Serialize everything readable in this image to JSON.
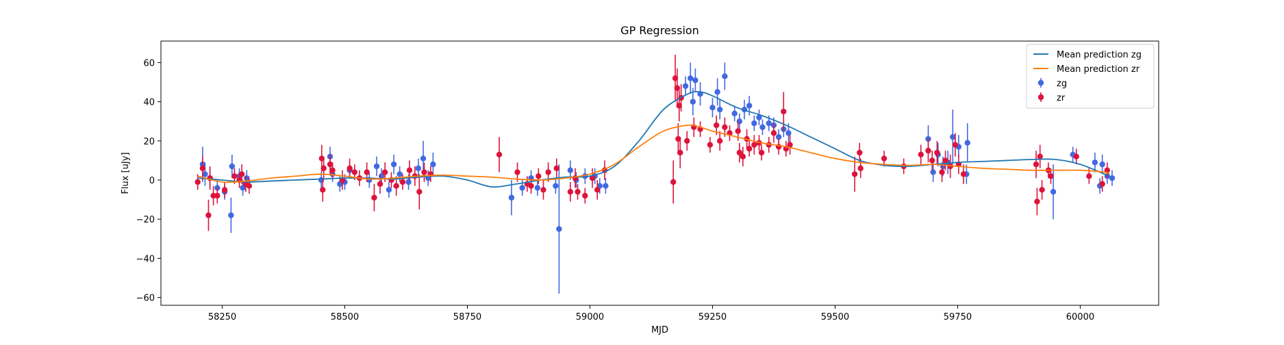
{
  "chart_data": {
    "type": "scatter",
    "title": "GP Regression",
    "xlabel": "MJD",
    "ylabel": "Flux [uJy]",
    "xlim": [
      58125,
      60160
    ],
    "ylim": [
      -64,
      71
    ],
    "xticks": [
      58250,
      58500,
      58750,
      59000,
      59250,
      59500,
      59750,
      60000
    ],
    "yticks": [
      -60,
      -40,
      -20,
      0,
      20,
      40,
      60
    ],
    "grid": false,
    "legend_position": "top-right",
    "legend": [
      "Mean prediction zg",
      "Mean prediction zr",
      "zg",
      "zr"
    ],
    "series": [
      {
        "name": "Mean prediction zg",
        "kind": "line",
        "color": "#1f77b4",
        "x": [
          58200,
          58250,
          58300,
          58350,
          58400,
          58450,
          58500,
          58550,
          58600,
          58650,
          58700,
          58750,
          58800,
          58850,
          58900,
          58950,
          59000,
          59050,
          59100,
          59150,
          59200,
          59225,
          59250,
          59300,
          59350,
          59400,
          59450,
          59500,
          59550,
          59600,
          59650,
          59700,
          59750,
          59800,
          59850,
          59900,
          59950,
          60000,
          60050,
          60060
        ],
        "y": [
          1,
          0,
          -1,
          -0.5,
          0,
          0.5,
          1,
          1,
          0.5,
          1.5,
          2,
          0,
          -3.5,
          -2,
          0,
          1.5,
          2,
          7,
          20,
          36,
          44,
          45,
          43,
          37,
          33,
          28,
          22,
          16,
          10,
          7.5,
          7,
          8,
          9,
          9.5,
          10,
          10.5,
          10.5,
          8,
          3,
          2
        ]
      },
      {
        "name": "Mean prediction zr",
        "kind": "line",
        "color": "#ff7f0e",
        "x": [
          58200,
          58250,
          58300,
          58350,
          58400,
          58450,
          58500,
          58550,
          58600,
          58650,
          58700,
          58750,
          58800,
          58850,
          58900,
          58950,
          59000,
          59050,
          59100,
          59150,
          59200,
          59225,
          59250,
          59300,
          59350,
          59400,
          59450,
          59500,
          59550,
          59600,
          59650,
          59700,
          59750,
          59800,
          59850,
          59900,
          59950,
          60000,
          60050,
          60060
        ],
        "y": [
          2,
          -1,
          -0.5,
          1,
          2,
          3,
          2,
          0.5,
          1,
          2,
          2.5,
          2,
          1.5,
          0.5,
          0,
          1,
          3,
          8,
          17,
          25,
          28,
          27,
          25,
          22,
          19,
          17,
          14,
          11,
          9,
          8,
          7.5,
          8,
          7,
          6,
          5.5,
          5,
          5,
          5,
          4,
          3
        ]
      },
      {
        "name": "zg",
        "kind": "errorbar",
        "color": "#4169e1",
        "points": [
          [
            58210,
            8,
            9
          ],
          [
            58215,
            3,
            6
          ],
          [
            58225,
            1,
            5
          ],
          [
            58240,
            -4,
            4
          ],
          [
            58255,
            -6,
            4
          ],
          [
            58268,
            -18,
            9
          ],
          [
            58270,
            7,
            6
          ],
          [
            58285,
            2,
            4
          ],
          [
            58292,
            -4,
            4
          ],
          [
            58300,
            1,
            4
          ],
          [
            58452,
            0,
            4
          ],
          [
            58470,
            12,
            5
          ],
          [
            58475,
            3,
            4
          ],
          [
            58490,
            -2,
            4
          ],
          [
            58500,
            -1,
            4
          ],
          [
            58510,
            5,
            4
          ],
          [
            58550,
            0,
            4
          ],
          [
            58565,
            7,
            5
          ],
          [
            58575,
            2,
            4
          ],
          [
            58590,
            -5,
            4
          ],
          [
            58600,
            8,
            5
          ],
          [
            58612,
            3,
            4
          ],
          [
            58630,
            -1,
            4
          ],
          [
            58650,
            6,
            5
          ],
          [
            58660,
            11,
            9
          ],
          [
            58670,
            1,
            4
          ],
          [
            58680,
            8,
            6
          ],
          [
            58840,
            -9,
            9
          ],
          [
            58862,
            -4,
            4
          ],
          [
            58880,
            1,
            4
          ],
          [
            58893,
            -4,
            4
          ],
          [
            58930,
            -3,
            4
          ],
          [
            58937,
            -25,
            33
          ],
          [
            58960,
            5,
            5
          ],
          [
            58972,
            0,
            4
          ],
          [
            58990,
            2,
            4
          ],
          [
            59010,
            2,
            4
          ],
          [
            59020,
            -3,
            4
          ],
          [
            59032,
            -3,
            4
          ],
          [
            59195,
            48,
            5
          ],
          [
            59205,
            52,
            8
          ],
          [
            59210,
            40,
            7
          ],
          [
            59215,
            51,
            6
          ],
          [
            59225,
            44,
            6
          ],
          [
            59250,
            37,
            5
          ],
          [
            59260,
            45,
            7
          ],
          [
            59265,
            36,
            5
          ],
          [
            59275,
            53,
            7
          ],
          [
            59295,
            34,
            4
          ],
          [
            59305,
            30,
            4
          ],
          [
            59315,
            36,
            5
          ],
          [
            59325,
            38,
            5
          ],
          [
            59335,
            29,
            4
          ],
          [
            59345,
            32,
            4
          ],
          [
            59352,
            27,
            4
          ],
          [
            59365,
            29,
            4
          ],
          [
            59375,
            28,
            4
          ],
          [
            59385,
            22,
            4
          ],
          [
            59395,
            26,
            4
          ],
          [
            59405,
            24,
            5
          ],
          [
            59690,
            21,
            7
          ],
          [
            59700,
            4,
            5
          ],
          [
            59710,
            13,
            6
          ],
          [
            59720,
            7,
            5
          ],
          [
            59730,
            9,
            6
          ],
          [
            59740,
            22,
            14
          ],
          [
            59752,
            17,
            6
          ],
          [
            59768,
            3,
            5
          ],
          [
            59770,
            19,
            10
          ],
          [
            59945,
            -6,
            14
          ],
          [
            59985,
            13,
            4
          ],
          [
            60030,
            9,
            5
          ],
          [
            60040,
            -3,
            4
          ],
          [
            60045,
            8,
            5
          ],
          [
            60055,
            2,
            4
          ],
          [
            60065,
            1,
            4
          ]
        ]
      },
      {
        "name": "zr",
        "kind": "errorbar",
        "color": "#dc143c",
        "points": [
          [
            58200,
            -1,
            4
          ],
          [
            58210,
            6,
            6
          ],
          [
            58222,
            -18,
            8
          ],
          [
            58225,
            1,
            6
          ],
          [
            58232,
            -8,
            5
          ],
          [
            58240,
            -8,
            4
          ],
          [
            58255,
            -5,
            4
          ],
          [
            58275,
            2,
            4
          ],
          [
            58285,
            0,
            4
          ],
          [
            58290,
            3,
            5
          ],
          [
            58298,
            -2,
            4
          ],
          [
            58305,
            -3,
            4
          ],
          [
            58453,
            11,
            7
          ],
          [
            58455,
            -5,
            6
          ],
          [
            58457,
            6,
            5
          ],
          [
            58470,
            8,
            5
          ],
          [
            58475,
            5,
            4
          ],
          [
            58495,
            0,
            5
          ],
          [
            58510,
            6,
            5
          ],
          [
            58520,
            4,
            4
          ],
          [
            58530,
            1,
            4
          ],
          [
            58545,
            4,
            5
          ],
          [
            58560,
            -9,
            7
          ],
          [
            58572,
            -2,
            5
          ],
          [
            58582,
            4,
            5
          ],
          [
            58595,
            0,
            4
          ],
          [
            58605,
            -3,
            5
          ],
          [
            58618,
            -1,
            4
          ],
          [
            58632,
            5,
            5
          ],
          [
            58643,
            2,
            5
          ],
          [
            58652,
            -6,
            9
          ],
          [
            58662,
            4,
            5
          ],
          [
            58675,
            3,
            4
          ],
          [
            58815,
            13,
            9
          ],
          [
            58852,
            4,
            5
          ],
          [
            58872,
            -2,
            4
          ],
          [
            58880,
            -3,
            4
          ],
          [
            58895,
            2,
            4
          ],
          [
            58905,
            -5,
            5
          ],
          [
            58915,
            4,
            5
          ],
          [
            58932,
            6,
            5
          ],
          [
            58960,
            -6,
            5
          ],
          [
            58970,
            1,
            5
          ],
          [
            58975,
            -6,
            4
          ],
          [
            58990,
            -8,
            4
          ],
          [
            59005,
            1,
            5
          ],
          [
            59015,
            -5,
            5
          ],
          [
            59030,
            5,
            5
          ],
          [
            59170,
            -1,
            11
          ],
          [
            59174,
            52,
            12
          ],
          [
            59178,
            47,
            10
          ],
          [
            59180,
            21,
            8
          ],
          [
            59182,
            38,
            8
          ],
          [
            59184,
            14,
            8
          ],
          [
            59186,
            42,
            7
          ],
          [
            59198,
            20,
            5
          ],
          [
            59212,
            27,
            5
          ],
          [
            59225,
            26,
            4
          ],
          [
            59245,
            18,
            4
          ],
          [
            59258,
            28,
            5
          ],
          [
            59265,
            20,
            5
          ],
          [
            59275,
            27,
            5
          ],
          [
            59285,
            24,
            4
          ],
          [
            59302,
            25,
            5
          ],
          [
            59305,
            14,
            5
          ],
          [
            59312,
            12,
            5
          ],
          [
            59320,
            21,
            5
          ],
          [
            59325,
            16,
            4
          ],
          [
            59335,
            18,
            5
          ],
          [
            59345,
            19,
            4
          ],
          [
            59350,
            14,
            4
          ],
          [
            59365,
            18,
            4
          ],
          [
            59375,
            24,
            5
          ],
          [
            59385,
            17,
            4
          ],
          [
            59395,
            35,
            10
          ],
          [
            59400,
            16,
            4
          ],
          [
            59408,
            18,
            5
          ],
          [
            59540,
            3,
            9
          ],
          [
            59550,
            14,
            5
          ],
          [
            59552,
            6,
            5
          ],
          [
            59600,
            11,
            4
          ],
          [
            59640,
            7,
            4
          ],
          [
            59675,
            13,
            5
          ],
          [
            59690,
            15,
            6
          ],
          [
            59698,
            10,
            5
          ],
          [
            59708,
            14,
            6
          ],
          [
            59718,
            4,
            5
          ],
          [
            59725,
            10,
            5
          ],
          [
            59735,
            7,
            6
          ],
          [
            59745,
            18,
            6
          ],
          [
            59752,
            8,
            5
          ],
          [
            59762,
            3,
            5
          ],
          [
            59910,
            8,
            7
          ],
          [
            59912,
            -11,
            7
          ],
          [
            59918,
            12,
            6
          ],
          [
            59922,
            -5,
            5
          ],
          [
            59935,
            5,
            4
          ],
          [
            59940,
            2,
            4
          ],
          [
            59992,
            12,
            4
          ],
          [
            60018,
            2,
            4
          ],
          [
            60045,
            -2,
            4
          ],
          [
            60055,
            5,
            4
          ]
        ]
      }
    ]
  }
}
